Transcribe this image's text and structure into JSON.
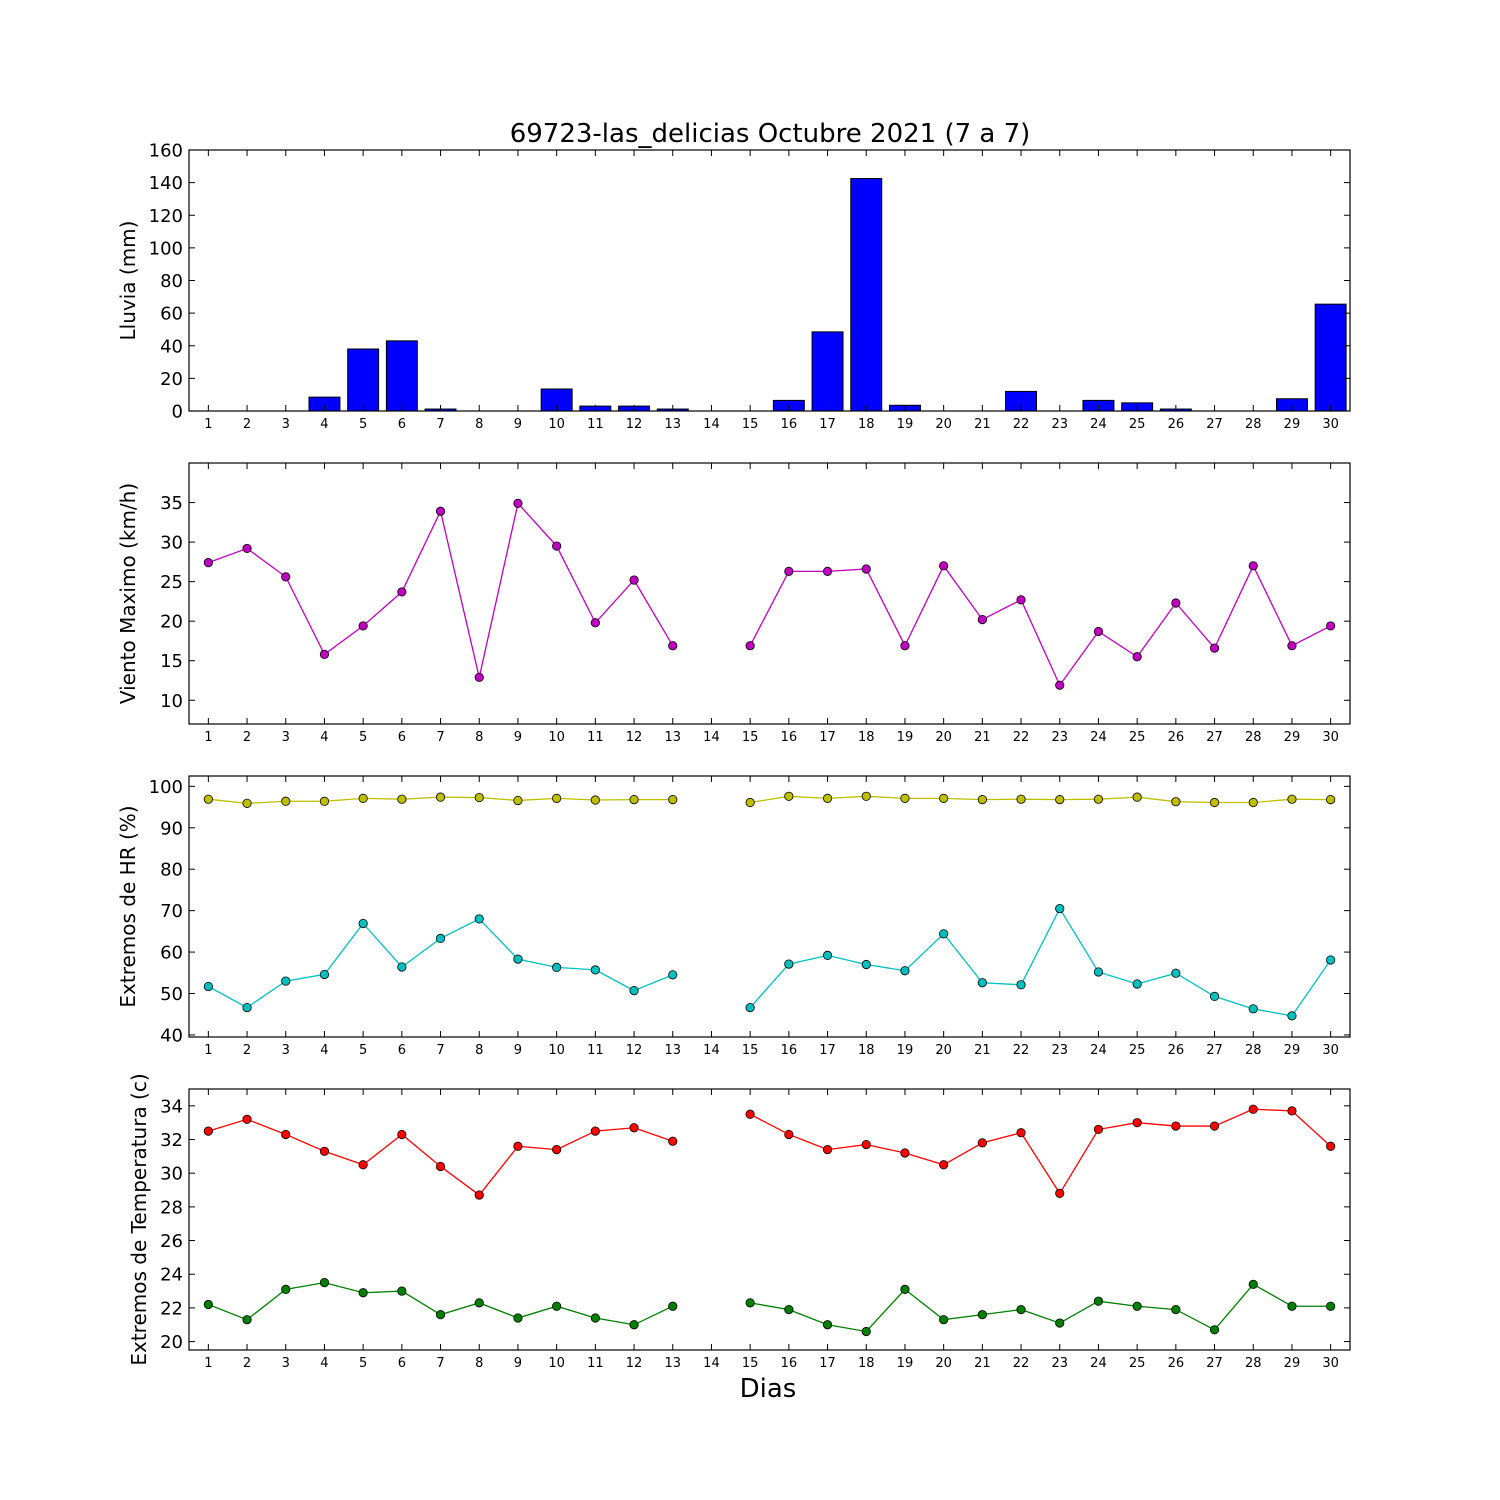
{
  "title": "69723-las_delicias Octubre 2021  (7 a 7)",
  "xlabel": "Dias",
  "x_ticks": [
    "1",
    "2",
    "3",
    "4",
    "5",
    "6",
    "7",
    "8",
    "9",
    "10",
    "11",
    "12",
    "13",
    "14",
    "15",
    "16",
    "17",
    "18",
    "19",
    "20",
    "21",
    "22",
    "23",
    "24",
    "25",
    "26",
    "27",
    "28",
    "29",
    "30"
  ],
  "chart_data": [
    {
      "type": "bar",
      "ylabel": "Lluvia (mm)",
      "ylim": [
        0,
        160
      ],
      "yticks": [
        0,
        20,
        40,
        60,
        80,
        100,
        120,
        140,
        160
      ],
      "categories": [
        "1",
        "2",
        "3",
        "4",
        "5",
        "6",
        "7",
        "8",
        "9",
        "10",
        "11",
        "12",
        "13",
        "14",
        "15",
        "16",
        "17",
        "18",
        "19",
        "20",
        "21",
        "22",
        "23",
        "24",
        "25",
        "26",
        "27",
        "28",
        "29",
        "30"
      ],
      "series": [
        {
          "color": "#0000ff",
          "values": [
            0,
            0,
            0,
            8.5,
            38,
            43,
            1.2,
            0,
            0,
            13.5,
            3,
            3,
            1.2,
            0,
            0,
            6.5,
            48.5,
            142.5,
            3.5,
            0,
            0,
            12,
            0,
            6.5,
            5,
            1.2,
            0,
            0,
            7.5,
            65.5
          ]
        }
      ]
    },
    {
      "type": "line",
      "ylabel": "Viento Maximo (km/h)",
      "ylim": [
        7,
        40
      ],
      "yticks": [
        10,
        15,
        20,
        25,
        30,
        35
      ],
      "x": [
        1,
        2,
        3,
        4,
        5,
        6,
        7,
        8,
        9,
        10,
        11,
        12,
        13,
        14,
        15,
        16,
        17,
        18,
        19,
        20,
        21,
        22,
        23,
        24,
        25,
        26,
        27,
        28,
        29,
        30
      ],
      "series": [
        {
          "color": "#bf00bf",
          "values": [
            27.4,
            29.2,
            25.6,
            15.8,
            19.4,
            23.7,
            33.9,
            12.9,
            34.9,
            29.5,
            19.8,
            25.2,
            16.9,
            null,
            16.9,
            26.3,
            26.3,
            26.6,
            16.9,
            27.0,
            20.2,
            22.7,
            11.9,
            18.7,
            15.5,
            22.3,
            16.6,
            27.0,
            16.9,
            19.4
          ]
        }
      ]
    },
    {
      "type": "line",
      "ylabel": "Extremos de HR (%)",
      "ylim": [
        39.5,
        102.5
      ],
      "yticks": [
        40,
        50,
        60,
        70,
        80,
        90,
        100
      ],
      "x": [
        1,
        2,
        3,
        4,
        5,
        6,
        7,
        8,
        9,
        10,
        11,
        12,
        13,
        14,
        15,
        16,
        17,
        18,
        19,
        20,
        21,
        22,
        23,
        24,
        25,
        26,
        27,
        28,
        29,
        30
      ],
      "series": [
        {
          "color": "#bfbf00",
          "values": [
            96.9,
            95.9,
            96.4,
            96.4,
            97.1,
            96.9,
            97.4,
            97.3,
            96.6,
            97.1,
            96.7,
            96.8,
            96.8,
            null,
            96.1,
            97.6,
            97.1,
            97.6,
            97.1,
            97.1,
            96.8,
            96.9,
            96.8,
            96.9,
            97.4,
            96.3,
            96.1,
            96.1,
            96.9,
            96.8
          ]
        },
        {
          "color": "#00bfbf",
          "values": [
            51.7,
            46.6,
            53.0,
            54.6,
            66.9,
            56.4,
            63.3,
            68.0,
            58.3,
            56.3,
            55.7,
            50.7,
            54.5,
            null,
            46.6,
            57.1,
            59.2,
            57.0,
            55.5,
            64.4,
            52.6,
            52.1,
            70.5,
            55.2,
            52.3,
            54.9,
            49.3,
            46.3,
            44.6,
            58.1
          ]
        }
      ]
    },
    {
      "type": "line",
      "ylabel": "Extremos de Temperatura (c)",
      "ylim": [
        19.5,
        35
      ],
      "yticks": [
        20,
        22,
        24,
        26,
        28,
        30,
        32,
        34
      ],
      "x": [
        1,
        2,
        3,
        4,
        5,
        6,
        7,
        8,
        9,
        10,
        11,
        12,
        13,
        14,
        15,
        16,
        17,
        18,
        19,
        20,
        21,
        22,
        23,
        24,
        25,
        26,
        27,
        28,
        29,
        30
      ],
      "series": [
        {
          "color": "#ff0000",
          "values": [
            32.5,
            33.2,
            32.3,
            31.3,
            30.5,
            32.3,
            30.4,
            28.7,
            31.6,
            31.4,
            32.5,
            32.7,
            31.9,
            null,
            33.5,
            32.3,
            31.4,
            31.7,
            31.2,
            30.5,
            31.8,
            32.4,
            28.8,
            32.6,
            33.0,
            32.8,
            32.8,
            33.8,
            33.7,
            31.6
          ]
        },
        {
          "color": "#007f00",
          "values": [
            22.2,
            21.3,
            23.1,
            23.5,
            22.9,
            23.0,
            21.6,
            22.3,
            21.4,
            22.1,
            21.4,
            21.0,
            22.1,
            null,
            22.3,
            21.9,
            21.0,
            20.6,
            23.1,
            21.3,
            21.6,
            21.9,
            21.1,
            22.4,
            22.1,
            21.9,
            20.7,
            23.4,
            22.1,
            22.1
          ]
        }
      ]
    }
  ]
}
